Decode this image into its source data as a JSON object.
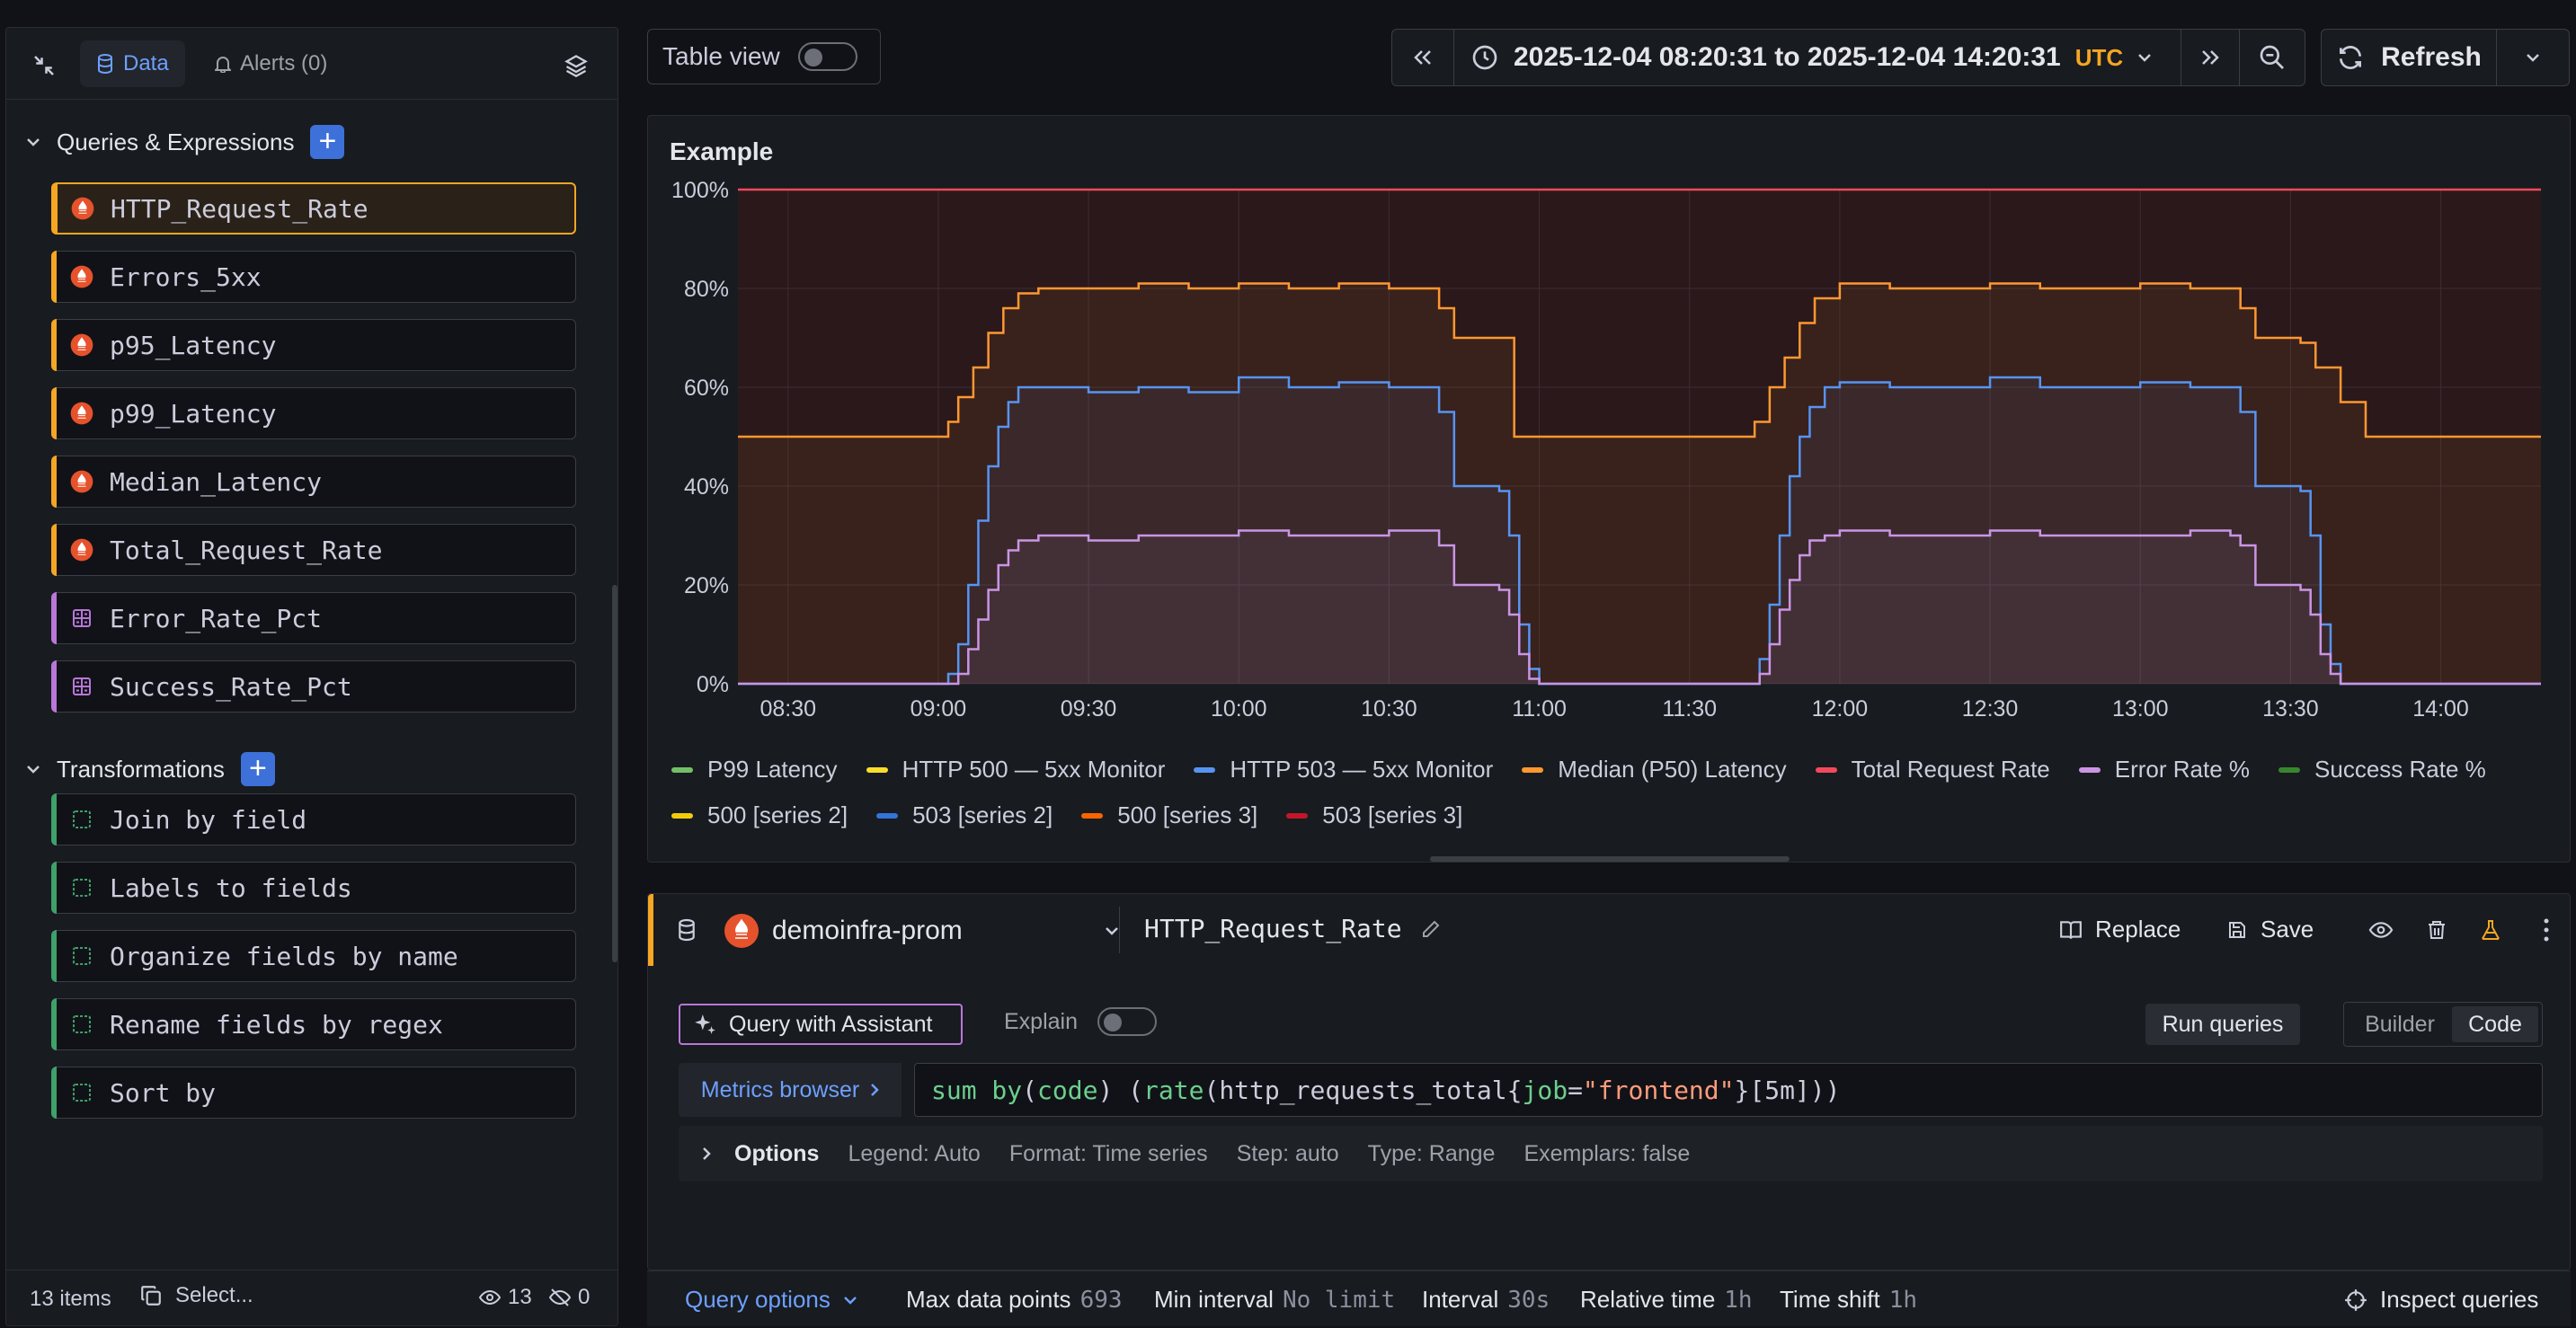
{
  "left_panel": {
    "tabs": {
      "collapse_icon": "collapse-icon",
      "data": "Data",
      "alerts": "Alerts (0)"
    },
    "queries_section": {
      "title": "Queries & Expressions",
      "items": [
        {
          "label": "HTTP_Request_Rate",
          "kind": "prometheus",
          "active": true
        },
        {
          "label": "Errors_5xx",
          "kind": "prometheus"
        },
        {
          "label": "p95_Latency",
          "kind": "prometheus"
        },
        {
          "label": "p99_Latency",
          "kind": "prometheus"
        },
        {
          "label": "Median_Latency",
          "kind": "prometheus"
        },
        {
          "label": "Total_Request_Rate",
          "kind": "prometheus"
        },
        {
          "label": "Error_Rate_Pct",
          "kind": "expression"
        },
        {
          "label": "Success_Rate_Pct",
          "kind": "expression"
        }
      ]
    },
    "transformations_section": {
      "title": "Transformations",
      "items": [
        {
          "label": "Join by field"
        },
        {
          "label": "Labels to fields"
        },
        {
          "label": "Organize fields by name"
        },
        {
          "label": "Rename fields by regex"
        },
        {
          "label": "Sort by"
        }
      ]
    },
    "footer": {
      "count": "13 items",
      "select": "Select...",
      "visible": "13",
      "hidden": "0"
    }
  },
  "toolbar": {
    "table_view": "Table view",
    "time_range": "2025-12-04 08:20:31 to 2025-12-04 14:20:31",
    "timezone": "UTC",
    "refresh": "Refresh"
  },
  "chart_data": {
    "type": "line",
    "title": "Example",
    "yticks": [
      "0%",
      "20%",
      "40%",
      "60%",
      "80%",
      "100%"
    ],
    "ylim": [
      0,
      100
    ],
    "xticks": [
      "08:30",
      "09:00",
      "09:30",
      "10:00",
      "10:30",
      "11:00",
      "11:30",
      "12:00",
      "12:30",
      "13:00",
      "13:30",
      "14:00"
    ],
    "xlim_minutes_from_0800": [
      20,
      380
    ],
    "grid": true,
    "legend_placement": "bottom",
    "series": [
      {
        "name": "Total Request Rate",
        "color": "#f2495c",
        "x": [
          20,
          380
        ],
        "y": [
          100,
          100
        ]
      },
      {
        "name": "Median (P50) Latency",
        "color": "#ff9830",
        "x": [
          20,
          60,
          62,
          64,
          67,
          70,
          73,
          76,
          80,
          90,
          100,
          110,
          120,
          130,
          140,
          150,
          158,
          160,
          163,
          172,
          175,
          195,
          200,
          220,
          223,
          226,
          229,
          232,
          235,
          240,
          250,
          260,
          270,
          280,
          290,
          300,
          310,
          318,
          320,
          323,
          332,
          335,
          340,
          345,
          380
        ],
        "y": [
          50,
          50,
          53,
          58,
          64,
          71,
          76,
          79,
          80,
          80,
          81,
          80,
          81,
          80,
          81,
          80,
          80,
          76,
          70,
          70,
          50,
          50,
          50,
          50,
          53,
          60,
          66,
          73,
          78,
          81,
          80,
          80,
          81,
          80,
          80,
          81,
          80,
          80,
          76,
          70,
          69,
          64,
          57,
          50,
          50
        ]
      },
      {
        "name": "503 [series 2]",
        "color": "#5794f2",
        "x": [
          20,
          60,
          62,
          64,
          66,
          68,
          70,
          72,
          74,
          76,
          80,
          90,
          100,
          110,
          120,
          130,
          140,
          150,
          158,
          160,
          163,
          172,
          174,
          176,
          178,
          180,
          195,
          222,
          224,
          226,
          228,
          230,
          232,
          234,
          237,
          240,
          250,
          260,
          270,
          280,
          290,
          300,
          310,
          318,
          320,
          323,
          332,
          334,
          336,
          338,
          340,
          380
        ],
        "y": [
          0,
          0,
          2,
          8,
          20,
          33,
          44,
          52,
          57,
          60,
          60,
          59,
          60,
          59,
          62,
          60,
          61,
          60,
          60,
          55,
          40,
          39,
          30,
          12,
          3,
          0,
          0,
          0,
          5,
          16,
          30,
          42,
          50,
          56,
          60,
          61,
          60,
          60,
          62,
          60,
          60,
          61,
          60,
          60,
          55,
          40,
          39,
          30,
          12,
          4,
          0,
          0
        ]
      },
      {
        "name": "Error Rate %",
        "color": "#ca95e5",
        "x": [
          20,
          62,
          64,
          66,
          68,
          70,
          72,
          74,
          76,
          80,
          90,
          100,
          110,
          120,
          130,
          140,
          150,
          158,
          160,
          163,
          172,
          174,
          176,
          178,
          180,
          222,
          224,
          226,
          228,
          230,
          232,
          234,
          237,
          240,
          250,
          260,
          270,
          280,
          290,
          300,
          310,
          318,
          320,
          323,
          332,
          334,
          336,
          338,
          340,
          380
        ],
        "y": [
          0,
          0,
          2,
          7,
          13,
          19,
          24,
          27,
          29,
          30,
          29,
          30,
          30,
          31,
          30,
          30,
          31,
          31,
          28,
          20,
          19,
          14,
          6,
          1,
          0,
          0,
          2,
          8,
          15,
          21,
          26,
          29,
          30,
          31,
          30,
          30,
          31,
          30,
          30,
          30,
          31,
          30,
          28,
          20,
          19,
          14,
          6,
          2,
          0,
          0
        ]
      }
    ],
    "legend": [
      {
        "name": "P99 Latency",
        "color": "#73bf69"
      },
      {
        "name": "HTTP 500 — 5xx Monitor",
        "color": "#fade2a"
      },
      {
        "name": "HTTP 503 — 5xx Monitor",
        "color": "#5794f2"
      },
      {
        "name": "Median (P50) Latency",
        "color": "#ff9830"
      },
      {
        "name": "Total Request Rate",
        "color": "#f2495c"
      },
      {
        "name": "Error Rate %",
        "color": "#ca95e5"
      },
      {
        "name": "Success Rate %",
        "color": "#37872d"
      },
      {
        "name": "500 [series 2]",
        "color": "#f2cc0c"
      },
      {
        "name": "503 [series 2]",
        "color": "#3274d9"
      },
      {
        "name": "500 [series 3]",
        "color": "#fa6400"
      },
      {
        "name": "503 [series 3]",
        "color": "#c4162a"
      }
    ]
  },
  "query": {
    "datasource": "demoinfra-prom",
    "name": "HTTP_Request_Rate",
    "replace": "Replace",
    "save": "Save",
    "assistant": "Query with Assistant",
    "explain": "Explain",
    "run": "Run queries",
    "builder": "Builder",
    "code": "Code",
    "metrics_browser": "Metrics browser",
    "expr_parts": [
      {
        "t": "sum by",
        "c": "#6ccf8e"
      },
      {
        "t": "(",
        "c": "#ccccdc"
      },
      {
        "t": "code",
        "c": "#6ccf8e"
      },
      {
        "t": ") (",
        "c": "#ccccdc"
      },
      {
        "t": "rate",
        "c": "#6ccf8e"
      },
      {
        "t": "(http_requests_total{",
        "c": "#ccccdc"
      },
      {
        "t": "job",
        "c": "#6ccf8e"
      },
      {
        "t": "=",
        "c": "#ccccdc"
      },
      {
        "t": "\"frontend\"",
        "c": "#ff9c7a"
      },
      {
        "t": "}[5m]))",
        "c": "#ccccdc"
      }
    ],
    "options_label": "Options",
    "options": [
      "Legend: Auto",
      "Format: Time series",
      "Step: auto",
      "Type: Range",
      "Exemplars: false"
    ]
  },
  "footer": {
    "query_options": "Query options",
    "max_dp_label": "Max data points",
    "max_dp": "693",
    "min_int_label": "Min interval",
    "min_int": "No limit",
    "interval_label": "Interval",
    "interval": "30s",
    "rel_time_label": "Relative time",
    "rel_time": "1h",
    "time_shift_label": "Time shift",
    "time_shift": "1h",
    "inspect": "Inspect queries"
  }
}
